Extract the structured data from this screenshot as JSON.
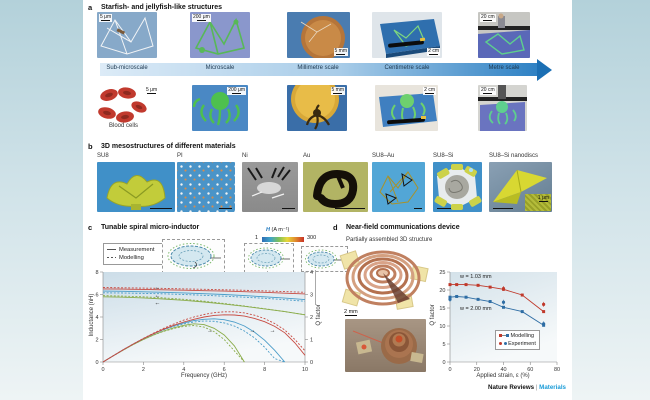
{
  "footer": {
    "journal": "Nature Reviews",
    "divider": "|",
    "title": "Materials"
  },
  "panel_a": {
    "label": "a",
    "title": "Starfish- and jellyfish-like structures",
    "row1_scales": [
      "5 μm",
      "200 μm",
      "5 mm",
      "2 cm",
      "20 cm"
    ],
    "scale_axis_labels": [
      "Sub-microscale",
      "Microscale",
      "Millimetre scale",
      "Centimetre scale",
      "Metre scale"
    ],
    "row2_scales": [
      "5 μm",
      "200 μm",
      "5 mm",
      "2 cm",
      "20 cm"
    ],
    "row2_caption": "Blood cells"
  },
  "panel_b": {
    "label": "b",
    "title": "3D mesostructures of different materials",
    "material_labels": [
      "SU8",
      "PI",
      "Ni",
      "Au",
      "SU8–Au",
      "SU8–Si",
      "SU8–Si nanodiscs"
    ],
    "inset_scale": "1 μm"
  },
  "panel_c": {
    "label": "c",
    "title": "Tunable spiral micro-inductor",
    "legend": {
      "measurement": "Measurement",
      "modelling": "Modelling"
    },
    "colorbar": {
      "label_var": "H",
      "label_units": " (A m⁻¹)",
      "min": "1",
      "max": "300"
    }
  },
  "panel_d": {
    "label": "d",
    "title": "Near-field communications device",
    "subtitle": "Partially assembled 3D structure",
    "scale": "2 mm",
    "series_label_red": "w = 1.03 mm",
    "series_label_blue": "w = 2.00 mm",
    "legend": {
      "modelling": "Modelling",
      "experiment": "Experiment"
    }
  },
  "chart_data": [
    {
      "type": "line",
      "title": "Tunable spiral micro-inductor",
      "xlabel": "Frequency (GHz)",
      "ylabel_left": "Inductance (nH)",
      "ylabel_right": "Q factor",
      "xlim": [
        0,
        10
      ],
      "xticks": [
        0,
        2,
        4,
        6,
        8,
        10
      ],
      "ylim_left": [
        0,
        8
      ],
      "yticks_left": [
        0,
        2,
        4,
        6,
        8
      ],
      "ylim_right": [
        0,
        4
      ],
      "yticks_right": [
        0,
        1,
        2,
        3,
        4
      ],
      "legend_entries": [
        "Measurement (solid)",
        "Modelling (dashed)"
      ],
      "colorbar": {
        "label": "H (A m⁻¹)",
        "min": 1,
        "max": 300
      },
      "series": [
        {
          "name": "Inductance green measurement",
          "axis": "left",
          "color": "#8aac4a",
          "dash": false,
          "x": [
            0,
            1,
            2,
            3,
            4,
            5,
            6,
            7,
            8,
            9,
            10
          ],
          "values": [
            5.8,
            5.76,
            5.7,
            5.6,
            5.48,
            5.33,
            5.15,
            4.95,
            4.72,
            4.48,
            4.2
          ]
        },
        {
          "name": "Inductance green modelling",
          "axis": "left",
          "color": "#8aac4a",
          "dash": true,
          "x": [
            0,
            1,
            2,
            3,
            4,
            5,
            6,
            7,
            8,
            9,
            10
          ],
          "values": [
            5.9,
            5.86,
            5.8,
            5.7,
            5.57,
            5.4,
            5.2,
            4.98,
            4.74,
            4.48,
            4.2
          ]
        },
        {
          "name": "Inductance blue measurement",
          "axis": "left",
          "color": "#4a9cc8",
          "dash": false,
          "x": [
            0,
            1,
            2,
            3,
            4,
            5,
            6,
            7,
            8,
            9,
            10
          ],
          "values": [
            6.3,
            6.28,
            6.24,
            6.2,
            6.14,
            6.07,
            6.0,
            5.9,
            5.8,
            5.68,
            5.55
          ]
        },
        {
          "name": "Inductance blue modelling",
          "axis": "left",
          "color": "#4a9cc8",
          "dash": true,
          "x": [
            0,
            1,
            2,
            3,
            4,
            5,
            6,
            7,
            8,
            9,
            10
          ],
          "values": [
            6.15,
            6.13,
            6.1,
            6.06,
            6.0,
            5.93,
            5.85,
            5.76,
            5.66,
            5.54,
            5.4
          ]
        },
        {
          "name": "Inductance red measurement",
          "axis": "left",
          "color": "#c84b42",
          "dash": false,
          "x": [
            0,
            1,
            2,
            3,
            4,
            5,
            6,
            7,
            8,
            9,
            10
          ],
          "values": [
            6.5,
            6.48,
            6.45,
            6.42,
            6.38,
            6.34,
            6.3,
            6.25,
            6.2,
            6.12,
            6.05
          ]
        },
        {
          "name": "Inductance red modelling",
          "axis": "left",
          "color": "#c84b42",
          "dash": true,
          "x": [
            0,
            1,
            2,
            3,
            4,
            5,
            6,
            7,
            8,
            9,
            10
          ],
          "values": [
            6.62,
            6.6,
            6.57,
            6.54,
            6.5,
            6.46,
            6.42,
            6.37,
            6.32,
            6.26,
            6.2
          ]
        },
        {
          "name": "Q factor green measurement",
          "axis": "right",
          "color": "#8aac4a",
          "dash": false,
          "x": [
            0,
            0.5,
            1,
            1.5,
            2,
            2.5,
            3,
            3.5,
            4,
            4.5,
            5,
            5.5,
            6,
            6.5,
            7
          ],
          "values": [
            0,
            0.27,
            0.53,
            0.78,
            1.0,
            1.2,
            1.38,
            1.52,
            1.63,
            1.7,
            1.66,
            1.5,
            1.2,
            0.72,
            0
          ]
        },
        {
          "name": "Q factor green modelling",
          "axis": "right",
          "color": "#8aac4a",
          "dash": true,
          "x": [
            0,
            0.5,
            1,
            1.5,
            2,
            2.5,
            3,
            3.5,
            4,
            4.5,
            5,
            5.5,
            6,
            6.5,
            7
          ],
          "values": [
            0,
            0.27,
            0.53,
            0.78,
            1.0,
            1.2,
            1.36,
            1.49,
            1.58,
            1.62,
            1.55,
            1.35,
            1.0,
            0.5,
            0
          ]
        },
        {
          "name": "Q factor blue measurement",
          "axis": "right",
          "color": "#4a9cc8",
          "dash": false,
          "x": [
            0,
            0.5,
            1,
            1.5,
            2,
            2.5,
            3,
            3.5,
            4,
            4.5,
            5,
            5.5,
            6,
            6.5,
            7,
            7.5,
            8,
            8.5,
            9
          ],
          "values": [
            0,
            0.27,
            0.54,
            0.8,
            1.04,
            1.26,
            1.45,
            1.61,
            1.74,
            1.84,
            1.9,
            1.92,
            1.88,
            1.78,
            1.6,
            1.33,
            0.97,
            0.52,
            0
          ]
        },
        {
          "name": "Q factor blue modelling",
          "axis": "right",
          "color": "#4a9cc8",
          "dash": true,
          "x": [
            0,
            0.5,
            1,
            1.5,
            2,
            2.5,
            3,
            3.5,
            4,
            4.5,
            5,
            5.5,
            6,
            6.5,
            7,
            7.5,
            8,
            8.5,
            9
          ],
          "values": [
            0,
            0.27,
            0.54,
            0.8,
            1.04,
            1.25,
            1.43,
            1.58,
            1.7,
            1.78,
            1.82,
            1.81,
            1.74,
            1.6,
            1.38,
            1.07,
            0.66,
            0.15,
            0
          ]
        },
        {
          "name": "Q factor red measurement",
          "axis": "right",
          "color": "#c84b42",
          "dash": false,
          "x": [
            0,
            0.5,
            1,
            1.5,
            2,
            2.5,
            3,
            3.5,
            4,
            4.5,
            5,
            5.5,
            6,
            6.5,
            7,
            7.5,
            8,
            8.5,
            9,
            9.5,
            10
          ],
          "values": [
            0,
            0.27,
            0.54,
            0.8,
            1.04,
            1.26,
            1.46,
            1.63,
            1.78,
            1.9,
            2.0,
            2.07,
            2.1,
            2.09,
            2.04,
            1.94,
            1.79,
            1.58,
            1.3,
            0.85,
            0.3
          ]
        },
        {
          "name": "Q factor red modelling",
          "axis": "right",
          "color": "#c84b42",
          "dash": true,
          "x": [
            0,
            0.5,
            1,
            1.5,
            2,
            2.5,
            3,
            3.5,
            4,
            4.5,
            5,
            5.5,
            6,
            6.5,
            7,
            7.5,
            8,
            8.5,
            9,
            9.5,
            10
          ],
          "values": [
            0,
            0.27,
            0.54,
            0.8,
            1.05,
            1.28,
            1.5,
            1.69,
            1.86,
            2.0,
            2.11,
            2.19,
            2.23,
            2.23,
            2.18,
            2.08,
            1.93,
            1.71,
            1.42,
            1.0,
            0.5
          ]
        }
      ],
      "annotations": [
        {
          "x": 2.7,
          "y": 6.65,
          "text": "←"
        },
        {
          "x": 2.7,
          "y": 5.95,
          "text": "←"
        },
        {
          "x": 2.7,
          "y": 5.3,
          "text": "←"
        },
        {
          "x": 5.3,
          "y": 2.85,
          "text": "→"
        },
        {
          "x": 7.4,
          "y": 2.85,
          "text": "→"
        },
        {
          "x": 8.4,
          "y": 2.85,
          "text": "→"
        }
      ]
    },
    {
      "type": "scatter-line",
      "title": "Near-field communications device",
      "xlabel": "Applied strain, ε (%)",
      "ylabel": "Q factor",
      "xlim": [
        0,
        80
      ],
      "xticks": [
        0,
        20,
        40,
        60,
        80
      ],
      "ylim": [
        0,
        25
      ],
      "yticks": [
        0,
        5,
        10,
        15,
        20,
        25
      ],
      "legend_entries": [
        "Modelling",
        "Experiment"
      ],
      "series": [
        {
          "name": "Modelling w = 1.03 mm",
          "color": "#c0392b",
          "marker": "square",
          "line": true,
          "x": [
            0,
            5,
            12,
            21,
            30,
            40,
            54,
            70
          ],
          "y": [
            21.5,
            21.5,
            21.5,
            21.3,
            20.8,
            20.2,
            18.6,
            14.0
          ]
        },
        {
          "name": "Modelling w = 2.00 mm",
          "color": "#2e6da4",
          "marker": "square",
          "line": true,
          "x": [
            0,
            5,
            12,
            21,
            30,
            40,
            54,
            70
          ],
          "y": [
            18.0,
            18.2,
            18.0,
            17.4,
            16.8,
            15.2,
            14.0,
            10.2
          ]
        },
        {
          "name": "Experiment w = 1.03 mm",
          "color": "#c0392b",
          "marker": "circle",
          "line": false,
          "x": [
            40,
            70
          ],
          "y": [
            20.4,
            16.0
          ]
        },
        {
          "name": "Experiment w = 2.00 mm",
          "color": "#2e6da4",
          "marker": "circle",
          "line": false,
          "x": [
            0,
            40,
            70
          ],
          "y": [
            17.4,
            16.6,
            10.6
          ]
        }
      ]
    }
  ]
}
